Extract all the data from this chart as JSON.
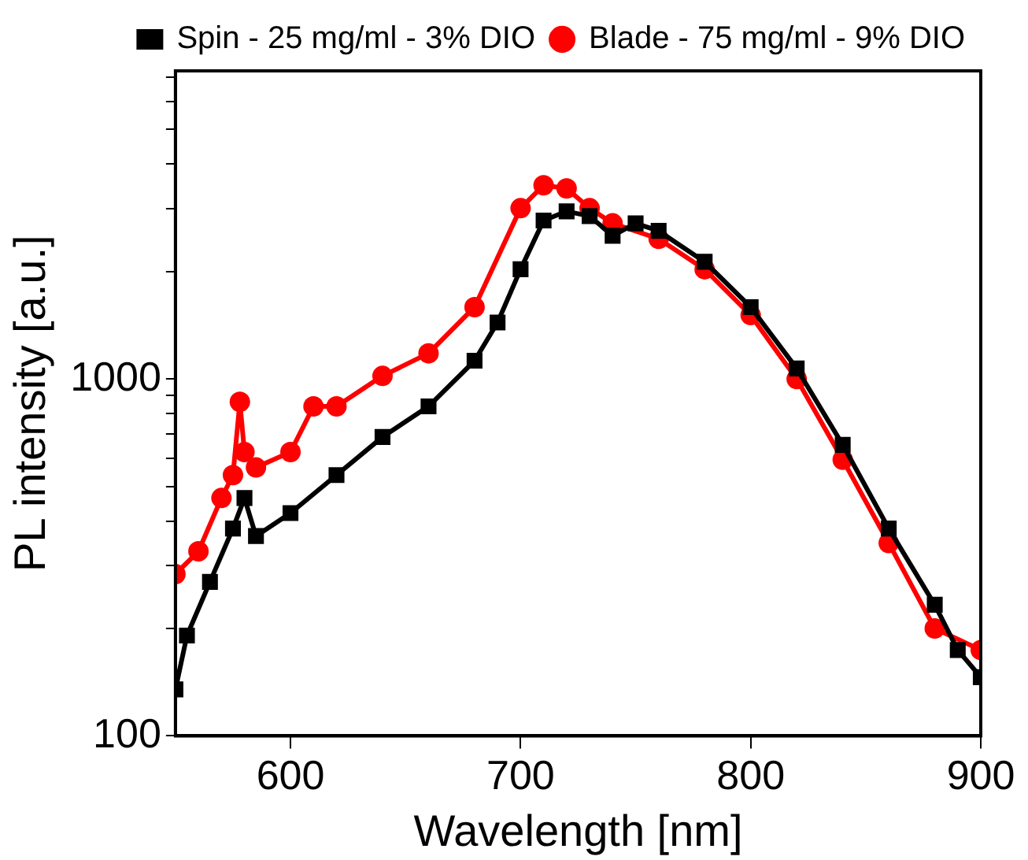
{
  "chart_data": {
    "type": "line",
    "xlabel": "Wavelength [nm]",
    "ylabel": "PL intensity [a.u.]",
    "log": "y",
    "xlim": [
      550,
      900
    ],
    "xticks": [
      600,
      700,
      800,
      900
    ],
    "ylim": [
      100,
      7300
    ],
    "yticks": [
      100,
      {
        "value": 200,
        "label": null
      },
      {
        "value": 300,
        "label": null
      },
      {
        "value": 400,
        "label": null
      },
      {
        "value": 500,
        "label": null
      },
      {
        "value": 600,
        "label": null
      },
      {
        "value": 700,
        "label": null
      },
      {
        "value": 800,
        "label": null
      },
      {
        "value": 900,
        "label": null
      },
      1000,
      {
        "value": 2000,
        "label": null
      },
      {
        "value": 3000,
        "label": null
      },
      {
        "value": 4000,
        "label": null
      },
      {
        "value": 5000,
        "label": null
      },
      {
        "value": 6000,
        "label": null
      },
      {
        "value": 7000,
        "label": null
      }
    ],
    "legend": "top right",
    "grid": false,
    "line_style": "solid",
    "series": [
      {
        "name": "Spin - 25 mg/ml - 3% DIO",
        "color": "#000000",
        "marker": "square",
        "x": [
          550,
          555,
          565,
          575,
          580,
          585,
          600,
          620,
          640,
          660,
          680,
          690,
          700,
          710,
          720,
          730,
          740,
          750,
          760,
          780,
          800,
          820,
          840,
          860,
          880,
          890,
          900
        ],
        "values": [
          135,
          191,
          270,
          381,
          464,
          363,
          421,
          538,
          688,
          838,
          1125,
          1440,
          2030,
          2780,
          2950,
          2860,
          2520,
          2730,
          2600,
          2130,
          1590,
          1070,
          654,
          381,
          233,
          174,
          146
        ]
      },
      {
        "name": "Blade - 75 mg/ml - 9% DIO",
        "color": "#ff0000",
        "marker": "circle",
        "x": [
          550,
          560,
          570,
          575,
          578,
          580,
          585,
          600,
          610,
          620,
          640,
          660,
          680,
          700,
          710,
          720,
          730,
          740,
          760,
          780,
          800,
          820,
          840,
          860,
          880,
          900
        ],
        "values": [
          284,
          329,
          464,
          538,
          863,
          624,
          565,
          624,
          838,
          838,
          1020,
          1180,
          1590,
          3010,
          3490,
          3420,
          3010,
          2730,
          2470,
          2030,
          1510,
          1000,
          594,
          347,
          200,
          174
        ]
      }
    ]
  }
}
